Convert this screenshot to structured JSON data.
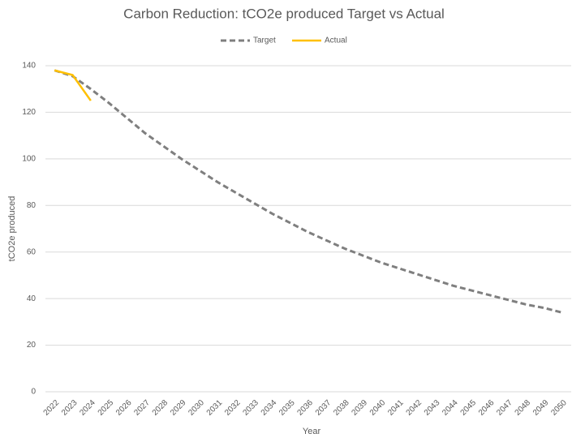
{
  "chart_data": {
    "type": "line",
    "title": "Carbon Reduction: tCO2e produced Target vs Actual",
    "x_label": "Year",
    "y_label": "tCO2e  produced",
    "categories": [
      "2022",
      "2023",
      "2024",
      "2025",
      "2026",
      "2027",
      "2028",
      "2029",
      "2030",
      "2031",
      "2032",
      "2033",
      "2034",
      "2035",
      "2036",
      "2037",
      "2038",
      "2039",
      "2040",
      "2041",
      "2042",
      "2043",
      "2044",
      "2045",
      "2046",
      "2047",
      "2048",
      "2049",
      "2050"
    ],
    "series": [
      {
        "name": "Target",
        "color": "#7f7f7f",
        "dash": true,
        "values": [
          138,
          135.5,
          130,
          124,
          117.5,
          111,
          105.5,
          100,
          95,
          90,
          85.5,
          81,
          76.5,
          72.5,
          68.5,
          65,
          61.5,
          58.5,
          55.5,
          53,
          50.5,
          48,
          45.5,
          43.5,
          41.5,
          39.5,
          37.5,
          36,
          34
        ]
      },
      {
        "name": "Actual",
        "color": "#ffc000",
        "dash": false,
        "values": [
          138,
          136,
          125,
          null,
          null,
          null,
          null,
          null,
          null,
          null,
          null,
          null,
          null,
          null,
          null,
          null,
          null,
          null,
          null,
          null,
          null,
          null,
          null,
          null,
          null,
          null,
          null,
          null,
          null
        ]
      }
    ],
    "ylim": [
      0,
      140
    ],
    "yticks": [
      0,
      20,
      40,
      60,
      80,
      100,
      120,
      140
    ],
    "grid": true,
    "legend": "top"
  }
}
